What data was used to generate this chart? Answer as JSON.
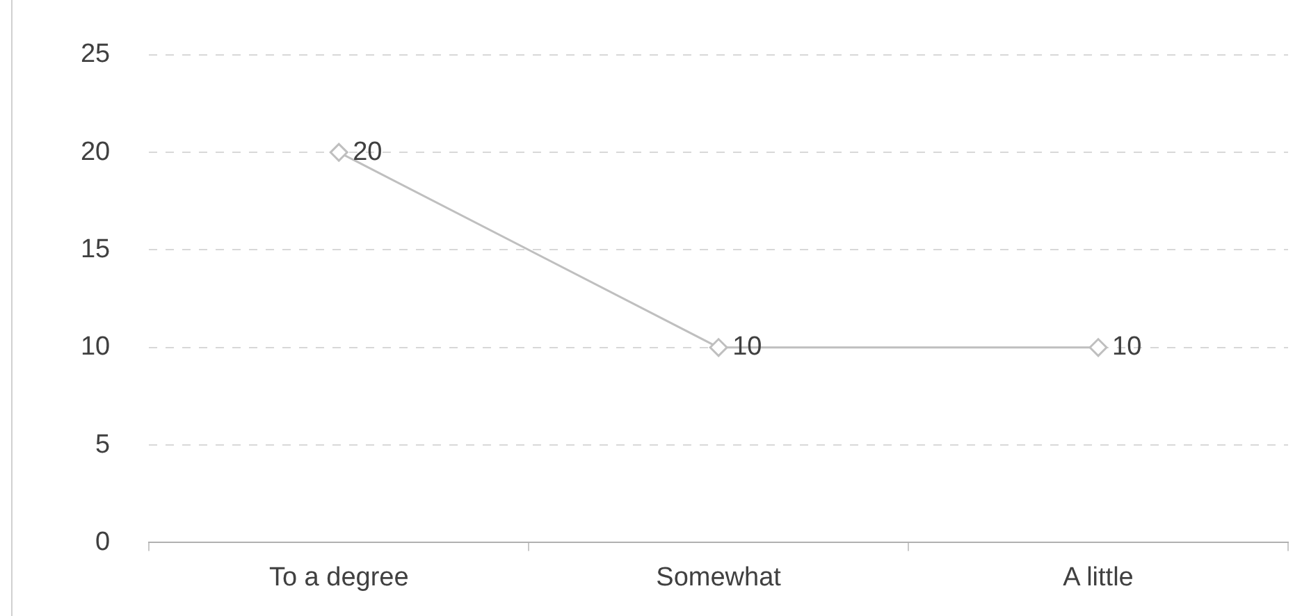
{
  "chart_data": {
    "type": "line",
    "categories": [
      "To a degree",
      "Somewhat",
      "A little"
    ],
    "series": [
      {
        "color": "#bfbfbf",
        "values": [
          20,
          10,
          10
        ]
      }
    ],
    "ylim": [
      0,
      25
    ],
    "yticks": [
      0,
      5,
      10,
      15,
      20,
      25
    ],
    "grid": "y",
    "marker": "diamond",
    "line_style": "solid",
    "data_labels": true,
    "legend": false
  }
}
